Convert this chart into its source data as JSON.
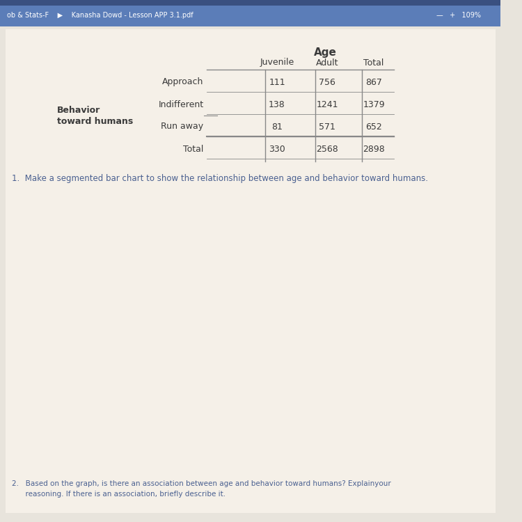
{
  "page_bg": "#e8e4dc",
  "paper_bg": "#f5f0e8",
  "browser_bar_color": "#5b7db8",
  "browser_text": "ob & Stats-F    ▶    Kanasha Dowd - Lesson APP 3.1.pdf",
  "browser_right": "109%",
  "table_header": "Age",
  "col_headers": [
    "Juvenile",
    "Adult",
    "Total"
  ],
  "row_labels": [
    "Approach",
    "Indifferent",
    "Run away",
    "Total"
  ],
  "row_group_label_line1": "Behavior",
  "row_group_label_line2": "toward humans",
  "data": [
    [
      111,
      756,
      867
    ],
    [
      138,
      1241,
      1379
    ],
    [
      81,
      571,
      652
    ],
    [
      330,
      2568,
      2898
    ]
  ],
  "question1": "1.  Make a segmented bar chart to show the relationship between age and behavior toward humans.",
  "question2_line1": "2.   Based on the graph, is there an association between age and behavior toward humans? Explainyour",
  "question2_line2": "      reasoning. If there is an association, briefly describe it.",
  "text_color": "#4a6090",
  "table_text_color": "#3a3a3a",
  "line_color": "#888888"
}
